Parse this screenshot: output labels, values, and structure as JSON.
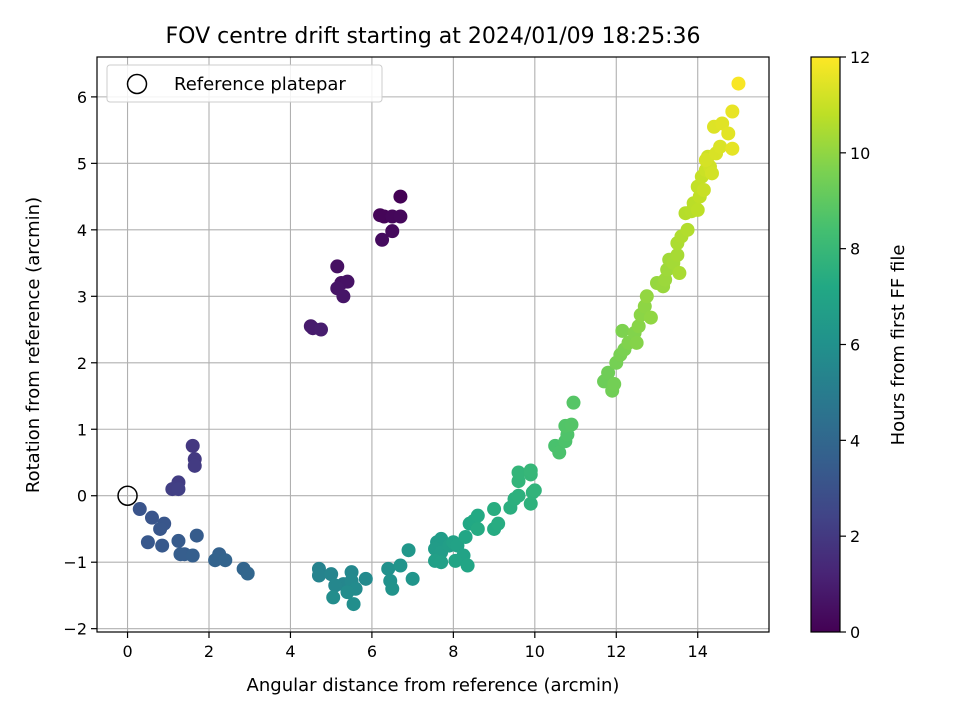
{
  "chart_data": {
    "type": "scatter",
    "title": "FOV centre drift starting at 2024/01/09 18:25:36",
    "xlabel": "Angular distance from reference (arcmin)",
    "ylabel": "Rotation from reference (arcmin)",
    "xlim": [
      -0.75,
      15.75
    ],
    "ylim": [
      -2.05,
      6.6
    ],
    "x_ticks": [
      0,
      2,
      4,
      6,
      8,
      10,
      12,
      14
    ],
    "x_tick_labels": [
      "0",
      "2",
      "4",
      "6",
      "8",
      "10",
      "12",
      "14"
    ],
    "y_ticks": [
      -2,
      -1,
      0,
      1,
      2,
      3,
      4,
      5,
      6
    ],
    "y_tick_labels": [
      "−2",
      "−1",
      "0",
      "1",
      "2",
      "3",
      "4",
      "5",
      "6"
    ],
    "grid": true,
    "legend": {
      "position": "top-left",
      "entries": [
        {
          "label": "Reference platepar",
          "marker": "open-circle"
        }
      ]
    },
    "reference_point": {
      "x": 0,
      "y": 0
    },
    "colorbar": {
      "label": "Hours from first FF file",
      "colormap": "viridis",
      "range": [
        0,
        12
      ],
      "ticks": [
        0,
        2,
        4,
        6,
        8,
        10,
        12
      ],
      "tick_labels": [
        "0",
        "2",
        "4",
        "6",
        "8",
        "10",
        "12"
      ]
    },
    "points": [
      {
        "x": 6.7,
        "y": 4.5,
        "h": 0.05
      },
      {
        "x": 6.3,
        "y": 4.2,
        "h": 0.1
      },
      {
        "x": 6.2,
        "y": 4.22,
        "h": 0.15
      },
      {
        "x": 6.5,
        "y": 4.2,
        "h": 0.2
      },
      {
        "x": 6.7,
        "y": 4.2,
        "h": 0.25
      },
      {
        "x": 6.5,
        "y": 3.98,
        "h": 0.3
      },
      {
        "x": 6.25,
        "y": 3.85,
        "h": 0.35
      },
      {
        "x": 5.15,
        "y": 3.45,
        "h": 0.5
      },
      {
        "x": 5.25,
        "y": 3.2,
        "h": 0.55
      },
      {
        "x": 5.4,
        "y": 3.22,
        "h": 0.6
      },
      {
        "x": 5.15,
        "y": 3.12,
        "h": 0.65
      },
      {
        "x": 5.3,
        "y": 3.0,
        "h": 0.7
      },
      {
        "x": 4.5,
        "y": 2.55,
        "h": 0.85
      },
      {
        "x": 4.55,
        "y": 2.52,
        "h": 0.9
      },
      {
        "x": 4.75,
        "y": 2.5,
        "h": 0.95
      },
      {
        "x": 1.6,
        "y": 0.75,
        "h": 1.9
      },
      {
        "x": 1.65,
        "y": 0.55,
        "h": 2.0
      },
      {
        "x": 1.65,
        "y": 0.45,
        "h": 2.05
      },
      {
        "x": 1.25,
        "y": 0.2,
        "h": 2.15
      },
      {
        "x": 1.1,
        "y": 0.1,
        "h": 2.2
      },
      {
        "x": 1.25,
        "y": 0.1,
        "h": 2.25
      },
      {
        "x": 0.3,
        "y": -0.2,
        "h": 3.1
      },
      {
        "x": 0.6,
        "y": -0.33,
        "h": 3.15
      },
      {
        "x": 0.9,
        "y": -0.42,
        "h": 3.2
      },
      {
        "x": 0.8,
        "y": -0.5,
        "h": 3.25
      },
      {
        "x": 0.5,
        "y": -0.7,
        "h": 3.3
      },
      {
        "x": 0.85,
        "y": -0.75,
        "h": 3.35
      },
      {
        "x": 1.25,
        "y": -0.68,
        "h": 3.4
      },
      {
        "x": 1.7,
        "y": -0.6,
        "h": 3.45
      },
      {
        "x": 1.4,
        "y": -0.88,
        "h": 3.5
      },
      {
        "x": 1.3,
        "y": -0.88,
        "h": 3.55
      },
      {
        "x": 1.6,
        "y": -0.9,
        "h": 3.6
      },
      {
        "x": 2.25,
        "y": -0.88,
        "h": 3.75
      },
      {
        "x": 2.15,
        "y": -0.97,
        "h": 3.8
      },
      {
        "x": 2.4,
        "y": -0.97,
        "h": 3.85
      },
      {
        "x": 2.85,
        "y": -1.1,
        "h": 3.9
      },
      {
        "x": 2.95,
        "y": -1.17,
        "h": 3.95
      },
      {
        "x": 4.7,
        "y": -1.1,
        "h": 5.3
      },
      {
        "x": 4.7,
        "y": -1.2,
        "h": 5.35
      },
      {
        "x": 5.0,
        "y": -1.18,
        "h": 5.4
      },
      {
        "x": 5.3,
        "y": -1.33,
        "h": 5.45
      },
      {
        "x": 5.1,
        "y": -1.35,
        "h": 5.5
      },
      {
        "x": 5.5,
        "y": -1.15,
        "h": 5.55
      },
      {
        "x": 5.5,
        "y": -1.28,
        "h": 5.6
      },
      {
        "x": 5.85,
        "y": -1.25,
        "h": 5.65
      },
      {
        "x": 5.6,
        "y": -1.4,
        "h": 5.7
      },
      {
        "x": 5.4,
        "y": -1.45,
        "h": 5.75
      },
      {
        "x": 5.05,
        "y": -1.53,
        "h": 5.8
      },
      {
        "x": 5.55,
        "y": -1.63,
        "h": 5.85
      },
      {
        "x": 6.4,
        "y": -1.1,
        "h": 6.0
      },
      {
        "x": 6.45,
        "y": -1.28,
        "h": 6.05
      },
      {
        "x": 6.5,
        "y": -1.4,
        "h": 6.1
      },
      {
        "x": 6.7,
        "y": -1.05,
        "h": 6.15
      },
      {
        "x": 7.0,
        "y": -1.25,
        "h": 6.2
      },
      {
        "x": 6.9,
        "y": -0.82,
        "h": 6.3
      },
      {
        "x": 7.6,
        "y": -0.7,
        "h": 6.5
      },
      {
        "x": 7.7,
        "y": -0.65,
        "h": 6.55
      },
      {
        "x": 7.55,
        "y": -0.8,
        "h": 6.6
      },
      {
        "x": 7.7,
        "y": -0.85,
        "h": 6.65
      },
      {
        "x": 7.9,
        "y": -0.75,
        "h": 6.7
      },
      {
        "x": 7.55,
        "y": -0.98,
        "h": 6.75
      },
      {
        "x": 7.7,
        "y": -1.0,
        "h": 6.8
      },
      {
        "x": 8.0,
        "y": -0.7,
        "h": 6.85
      },
      {
        "x": 8.1,
        "y": -0.75,
        "h": 6.9
      },
      {
        "x": 8.25,
        "y": -0.9,
        "h": 6.95
      },
      {
        "x": 8.05,
        "y": -0.98,
        "h": 7.0
      },
      {
        "x": 8.35,
        "y": -1.05,
        "h": 7.05
      },
      {
        "x": 8.3,
        "y": -0.62,
        "h": 7.1
      },
      {
        "x": 8.4,
        "y": -0.42,
        "h": 7.15
      },
      {
        "x": 8.5,
        "y": -0.38,
        "h": 7.2
      },
      {
        "x": 8.6,
        "y": -0.3,
        "h": 7.25
      },
      {
        "x": 8.6,
        "y": -0.5,
        "h": 7.3
      },
      {
        "x": 9.0,
        "y": -0.5,
        "h": 7.35
      },
      {
        "x": 9.1,
        "y": -0.42,
        "h": 7.4
      },
      {
        "x": 9.0,
        "y": -0.2,
        "h": 7.45
      },
      {
        "x": 9.4,
        "y": -0.18,
        "h": 7.5
      },
      {
        "x": 9.5,
        "y": -0.05,
        "h": 7.55
      },
      {
        "x": 9.6,
        "y": 0.0,
        "h": 7.6
      },
      {
        "x": 9.9,
        "y": -0.12,
        "h": 7.65
      },
      {
        "x": 9.95,
        "y": 0.05,
        "h": 7.7
      },
      {
        "x": 10.0,
        "y": 0.08,
        "h": 7.75
      },
      {
        "x": 9.6,
        "y": 0.22,
        "h": 7.8
      },
      {
        "x": 9.6,
        "y": 0.35,
        "h": 7.85
      },
      {
        "x": 9.9,
        "y": 0.32,
        "h": 7.9
      },
      {
        "x": 9.9,
        "y": 0.38,
        "h": 7.95
      },
      {
        "x": 10.5,
        "y": 0.75,
        "h": 8.5
      },
      {
        "x": 10.6,
        "y": 0.65,
        "h": 8.55
      },
      {
        "x": 10.75,
        "y": 0.82,
        "h": 8.6
      },
      {
        "x": 10.8,
        "y": 0.92,
        "h": 8.65
      },
      {
        "x": 10.75,
        "y": 1.05,
        "h": 8.7
      },
      {
        "x": 10.9,
        "y": 1.07,
        "h": 8.75
      },
      {
        "x": 10.95,
        "y": 1.4,
        "h": 8.8
      },
      {
        "x": 11.7,
        "y": 1.72,
        "h": 9.3
      },
      {
        "x": 11.8,
        "y": 1.85,
        "h": 9.35
      },
      {
        "x": 11.9,
        "y": 1.58,
        "h": 9.4
      },
      {
        "x": 11.95,
        "y": 1.68,
        "h": 9.45
      },
      {
        "x": 12.0,
        "y": 2.0,
        "h": 9.5
      },
      {
        "x": 12.1,
        "y": 2.12,
        "h": 9.55
      },
      {
        "x": 12.2,
        "y": 2.2,
        "h": 9.6
      },
      {
        "x": 12.15,
        "y": 2.48,
        "h": 9.65
      },
      {
        "x": 12.3,
        "y": 2.3,
        "h": 9.7
      },
      {
        "x": 12.45,
        "y": 2.45,
        "h": 9.75
      },
      {
        "x": 12.5,
        "y": 2.3,
        "h": 9.8
      },
      {
        "x": 12.55,
        "y": 2.55,
        "h": 9.85
      },
      {
        "x": 12.6,
        "y": 2.72,
        "h": 9.9
      },
      {
        "x": 12.7,
        "y": 2.85,
        "h": 9.95
      },
      {
        "x": 12.85,
        "y": 2.68,
        "h": 10.0
      },
      {
        "x": 12.75,
        "y": 3.0,
        "h": 10.05
      },
      {
        "x": 13.0,
        "y": 3.2,
        "h": 10.1
      },
      {
        "x": 13.15,
        "y": 3.15,
        "h": 10.15
      },
      {
        "x": 13.2,
        "y": 3.25,
        "h": 10.2
      },
      {
        "x": 13.25,
        "y": 3.4,
        "h": 10.25
      },
      {
        "x": 13.3,
        "y": 3.55,
        "h": 10.3
      },
      {
        "x": 13.4,
        "y": 3.5,
        "h": 10.35
      },
      {
        "x": 13.5,
        "y": 3.62,
        "h": 10.4
      },
      {
        "x": 13.55,
        "y": 3.35,
        "h": 10.45
      },
      {
        "x": 13.5,
        "y": 3.8,
        "h": 10.5
      },
      {
        "x": 13.6,
        "y": 3.9,
        "h": 10.55
      },
      {
        "x": 13.75,
        "y": 4.0,
        "h": 10.6
      },
      {
        "x": 13.7,
        "y": 4.25,
        "h": 10.65
      },
      {
        "x": 13.85,
        "y": 4.28,
        "h": 10.7
      },
      {
        "x": 13.9,
        "y": 4.4,
        "h": 10.75
      },
      {
        "x": 14.0,
        "y": 4.3,
        "h": 10.8
      },
      {
        "x": 14.05,
        "y": 4.5,
        "h": 10.85
      },
      {
        "x": 14.0,
        "y": 4.65,
        "h": 10.9
      },
      {
        "x": 14.1,
        "y": 4.8,
        "h": 10.95
      },
      {
        "x": 14.15,
        "y": 4.6,
        "h": 11.0
      },
      {
        "x": 14.2,
        "y": 4.9,
        "h": 11.05
      },
      {
        "x": 14.25,
        "y": 5.1,
        "h": 11.1
      },
      {
        "x": 14.3,
        "y": 4.95,
        "h": 11.15
      },
      {
        "x": 14.35,
        "y": 4.85,
        "h": 11.2
      },
      {
        "x": 14.2,
        "y": 5.05,
        "h": 11.25
      },
      {
        "x": 14.45,
        "y": 5.15,
        "h": 11.3
      },
      {
        "x": 14.55,
        "y": 5.25,
        "h": 11.35
      },
      {
        "x": 14.4,
        "y": 5.55,
        "h": 11.4
      },
      {
        "x": 14.6,
        "y": 5.6,
        "h": 11.45
      },
      {
        "x": 14.75,
        "y": 5.45,
        "h": 11.5
      },
      {
        "x": 14.85,
        "y": 5.22,
        "h": 11.55
      },
      {
        "x": 14.85,
        "y": 5.78,
        "h": 11.6
      },
      {
        "x": 15.0,
        "y": 6.2,
        "h": 11.9
      }
    ]
  }
}
